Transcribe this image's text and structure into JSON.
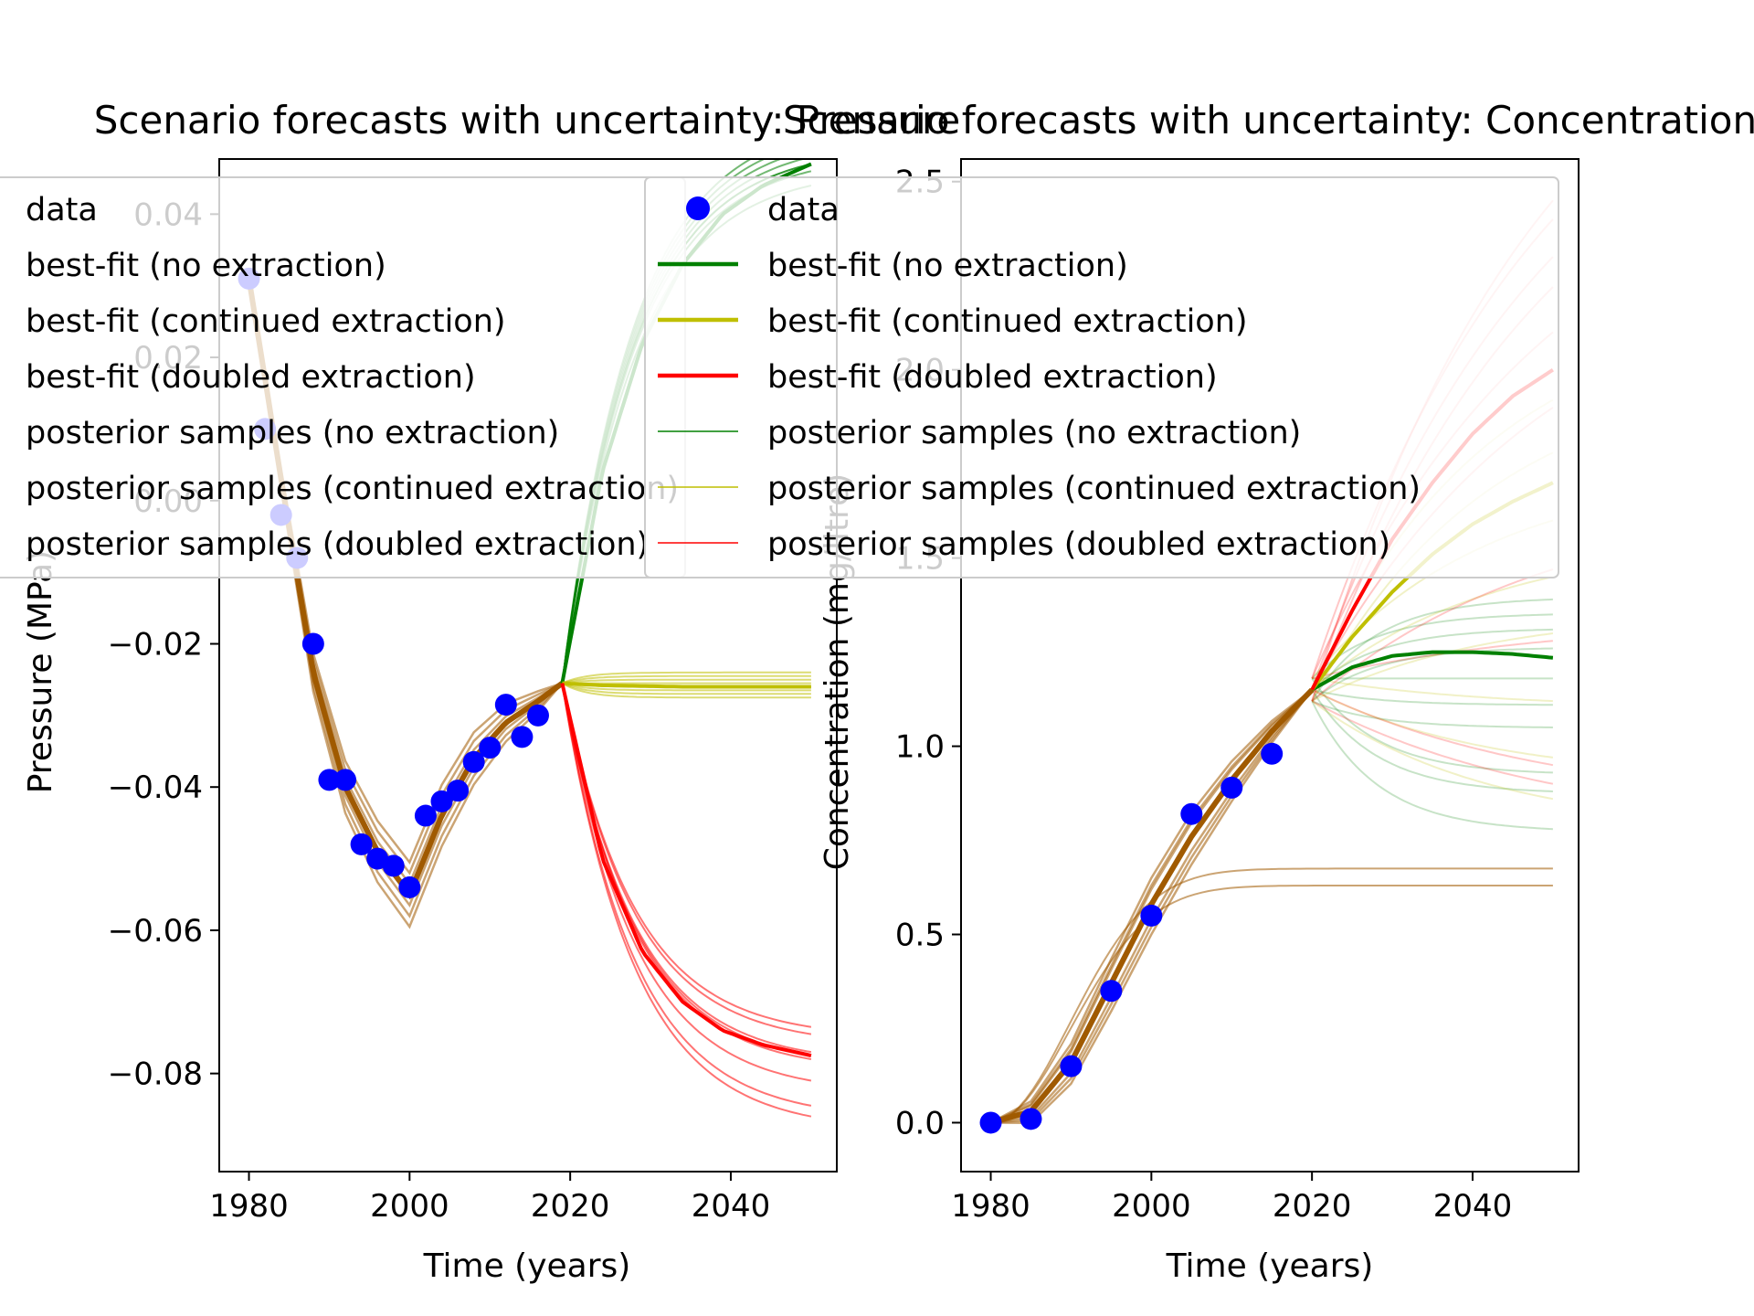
{
  "chart_data": [
    {
      "type": "line",
      "title": "Scenario forecasts with uncertainty: Pressure",
      "xlabel": "Time (years)",
      "ylabel": "Pressure (MPa)",
      "xlim": [
        1976.3,
        2053.2
      ],
      "ylim": [
        -0.0937,
        0.0477
      ],
      "xticks": [
        1980,
        2000,
        2020,
        2040
      ],
      "xtick_labels": [
        "1980",
        "2000",
        "2020",
        "2040"
      ],
      "yticks": [
        -0.08,
        -0.06,
        -0.04,
        -0.02,
        0.0,
        0.02,
        0.04
      ],
      "ytick_labels": [
        "−0.08",
        "−0.06",
        "−0.04",
        "−0.02",
        "0.00",
        "0.02",
        "0.04"
      ],
      "grid": false,
      "data": {
        "name": "data",
        "x": [
          1980,
          1982,
          1984,
          1986,
          1988,
          1990,
          1992,
          1994,
          1996,
          1998,
          2000,
          2002,
          2004,
          2006,
          2008,
          2010,
          2012,
          2014,
          2016
        ],
        "y": [
          0.031,
          0.01,
          -0.002,
          -0.008,
          -0.02,
          -0.039,
          -0.039,
          -0.048,
          -0.05,
          -0.051,
          -0.054,
          -0.044,
          -0.042,
          -0.0405,
          -0.0365,
          -0.0345,
          -0.0285,
          -0.033,
          -0.03
        ]
      },
      "fit_x": [
        1980,
        1984,
        1988,
        1992,
        1996,
        2000,
        2004,
        2008,
        2012,
        2016,
        2019
      ],
      "fit_y": [
        0.031,
        0.003,
        -0.024,
        -0.04,
        -0.049,
        -0.055,
        -0.044,
        -0.036,
        -0.031,
        -0.028,
        -0.0255
      ],
      "forecast_x": [
        2019,
        2024,
        2029,
        2034,
        2039,
        2044,
        2050
      ],
      "series": [
        {
          "name": "best-fit (no extraction)",
          "color": "#008000",
          "x": [
            2019,
            2024,
            2029,
            2034,
            2039,
            2044,
            2050
          ],
          "y": [
            -0.0255,
            0.004,
            0.022,
            0.033,
            0.04,
            0.044,
            0.047
          ]
        },
        {
          "name": "best-fit (continued extraction)",
          "color": "#bfbf00",
          "x": [
            2019,
            2024,
            2029,
            2034,
            2039,
            2044,
            2050
          ],
          "y": [
            -0.0255,
            -0.0258,
            -0.0259,
            -0.026,
            -0.026,
            -0.026,
            -0.026
          ]
        },
        {
          "name": "best-fit (doubled extraction)",
          "color": "#ff0000",
          "x": [
            2019,
            2024,
            2029,
            2034,
            2039,
            2044,
            2050
          ],
          "y": [
            -0.0255,
            -0.05,
            -0.063,
            -0.07,
            -0.074,
            -0.076,
            -0.0775
          ]
        }
      ],
      "posterior_final": {
        "no_extraction": [
          0.044,
          0.046,
          0.047,
          0.047,
          0.048,
          0.049,
          0.05,
          0.051
        ],
        "continued_extraction": [
          -0.024,
          -0.0245,
          -0.025,
          -0.0255,
          -0.026,
          -0.0265,
          -0.027,
          -0.0275
        ],
        "doubled_extraction": [
          -0.0735,
          -0.0745,
          -0.077,
          -0.0775,
          -0.078,
          -0.081,
          -0.0845,
          -0.086
        ]
      }
    },
    {
      "type": "line",
      "title": "Scenario forecasts with uncertainty: Concentration",
      "xlabel": "Time (years)",
      "ylabel": "Concentration (mg/litre)",
      "xlim": [
        1976.3,
        2053.2
      ],
      "ylim": [
        -0.13,
        2.56
      ],
      "xticks": [
        1980,
        2000,
        2020,
        2040
      ],
      "xtick_labels": [
        "1980",
        "2000",
        "2020",
        "2040"
      ],
      "yticks": [
        0.0,
        0.5,
        1.0,
        1.5,
        2.0,
        2.5
      ],
      "ytick_labels": [
        "0.0",
        "0.5",
        "1.0",
        "1.5",
        "2.0",
        "2.5"
      ],
      "grid": false,
      "data": {
        "name": "data",
        "x": [
          1980,
          1985,
          1990,
          1995,
          2000,
          2005,
          2010,
          2015
        ],
        "y": [
          0.0,
          0.01,
          0.15,
          0.35,
          0.55,
          0.82,
          0.89,
          0.98
        ]
      },
      "fit_x": [
        1980,
        1985,
        1990,
        1995,
        2000,
        2005,
        2010,
        2015,
        2020
      ],
      "fit_y": [
        0.0,
        0.03,
        0.16,
        0.37,
        0.58,
        0.76,
        0.91,
        1.04,
        1.15
      ],
      "forecast_x": [
        2020,
        2025,
        2030,
        2035,
        2040,
        2045,
        2050
      ],
      "series": [
        {
          "name": "best-fit (no extraction)",
          "color": "#008000",
          "x": [
            2020,
            2025,
            2030,
            2035,
            2040,
            2045,
            2050
          ],
          "y": [
            1.15,
            1.21,
            1.24,
            1.25,
            1.25,
            1.245,
            1.235
          ]
        },
        {
          "name": "best-fit (continued extraction)",
          "color": "#bfbf00",
          "x": [
            2020,
            2025,
            2030,
            2035,
            2040,
            2045,
            2050
          ],
          "y": [
            1.15,
            1.29,
            1.41,
            1.51,
            1.59,
            1.65,
            1.7
          ]
        },
        {
          "name": "best-fit (doubled extraction)",
          "color": "#ff0000",
          "x": [
            2020,
            2025,
            2030,
            2035,
            2040,
            2045,
            2050
          ],
          "y": [
            1.15,
            1.36,
            1.55,
            1.7,
            1.83,
            1.93,
            2.0
          ]
        }
      ],
      "posterior_final": {
        "no_extraction": [
          0.78,
          0.88,
          0.93,
          1.05,
          1.11,
          1.18,
          1.26,
          1.31,
          1.35,
          1.39
        ],
        "continued_extraction": [
          0.86,
          0.97,
          1.12,
          1.3,
          1.45,
          1.6,
          1.78,
          1.92
        ],
        "doubled_extraction": [
          0.9,
          0.95,
          1.28,
          1.47,
          1.9,
          2.1,
          2.22,
          2.3,
          2.4,
          2.45
        ]
      },
      "posterior_calibration_final": [
        0.63,
        0.675
      ]
    }
  ],
  "legend": {
    "placement": "upper-left",
    "entries": [
      {
        "label": "data",
        "kind": "marker",
        "color": "#0000ff",
        "alpha": 1
      },
      {
        "label": "best-fit (no extraction)",
        "kind": "line",
        "color": "#008000",
        "alpha": 1
      },
      {
        "label": "best-fit (continued extraction)",
        "kind": "line",
        "color": "#bfbf00",
        "alpha": 1
      },
      {
        "label": "best-fit (doubled extraction)",
        "kind": "line",
        "color": "#ff0000",
        "alpha": 1
      },
      {
        "label": "posterior samples (no extraction)",
        "kind": "thin",
        "color": "#008000",
        "alpha": 1
      },
      {
        "label": "posterior samples (continued extraction)",
        "kind": "thin",
        "color": "#bfbf00",
        "alpha": 1
      },
      {
        "label": "posterior samples (doubled extraction)",
        "kind": "thin",
        "color": "#ff0000",
        "alpha": 1
      }
    ]
  },
  "colors": {
    "data": "#0000ff",
    "calibration": "#a05a00",
    "no_extraction": "#008000",
    "continued_extraction": "#bfbf00",
    "doubled_extraction": "#ff0000"
  }
}
